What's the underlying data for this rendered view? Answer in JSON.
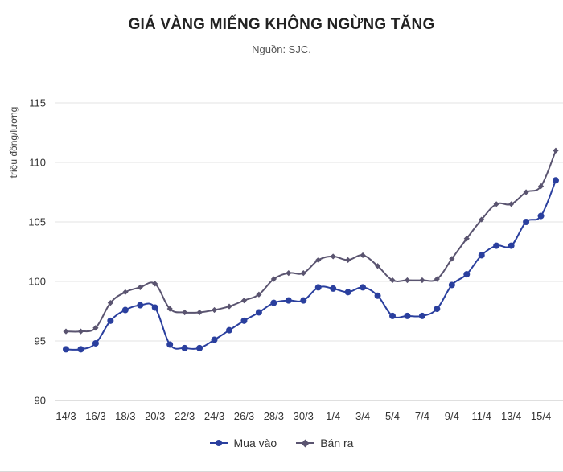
{
  "chart_data": {
    "type": "line",
    "title": "GIÁ VÀNG MIẾNG KHÔNG NGỪNG TĂNG",
    "subtitle": "Nguồn: SJC.",
    "ylabel": "triệu đồng/lượng",
    "xlabel": "",
    "ylim": [
      90,
      115
    ],
    "yticks": [
      "90",
      "95",
      "100",
      "105",
      "110",
      "115"
    ],
    "grid": true,
    "legend_position": "bottom",
    "categories": [
      "14/3",
      "15/3",
      "16/3",
      "17/3",
      "18/3",
      "19/3",
      "20/3",
      "21/3",
      "22/3",
      "23/3",
      "24/3",
      "25/3",
      "26/3",
      "27/3",
      "28/3",
      "29/3",
      "30/3",
      "31/3",
      "1/4",
      "2/4",
      "3/4",
      "4/4",
      "5/4",
      "6/4",
      "7/4",
      "8/4",
      "9/4",
      "10/4",
      "11/4",
      "12/4",
      "13/4",
      "14/4",
      "15/4",
      "16/4"
    ],
    "xtick_labels": [
      "14/3",
      "16/3",
      "18/3",
      "20/3",
      "22/3",
      "24/3",
      "26/3",
      "28/3",
      "30/3",
      "1/4",
      "3/4",
      "5/4",
      "7/4",
      "9/4",
      "11/4",
      "13/4",
      "15/4"
    ],
    "series": [
      {
        "name": "Mua vào",
        "color": "#2a3f9e",
        "marker": "circle",
        "values": [
          94.3,
          94.3,
          94.8,
          96.7,
          97.6,
          98.0,
          97.8,
          94.7,
          94.4,
          94.4,
          95.1,
          95.9,
          96.7,
          97.4,
          98.2,
          98.4,
          98.4,
          99.5,
          99.4,
          99.1,
          99.5,
          98.8,
          97.1,
          97.1,
          97.1,
          97.7,
          99.7,
          100.6,
          102.2,
          103.0,
          103.0,
          105.0,
          105.5,
          108.5
        ]
      },
      {
        "name": "Bán ra",
        "color": "#5a5470",
        "marker": "diamond",
        "values": [
          95.8,
          95.8,
          96.1,
          98.2,
          99.1,
          99.5,
          99.8,
          97.7,
          97.4,
          97.4,
          97.6,
          97.9,
          98.4,
          98.9,
          100.2,
          100.7,
          100.7,
          101.8,
          102.1,
          101.8,
          102.2,
          101.3,
          100.1,
          100.1,
          100.1,
          100.2,
          101.9,
          103.6,
          105.2,
          106.5,
          106.5,
          107.5,
          108.0,
          111.0
        ]
      }
    ]
  }
}
